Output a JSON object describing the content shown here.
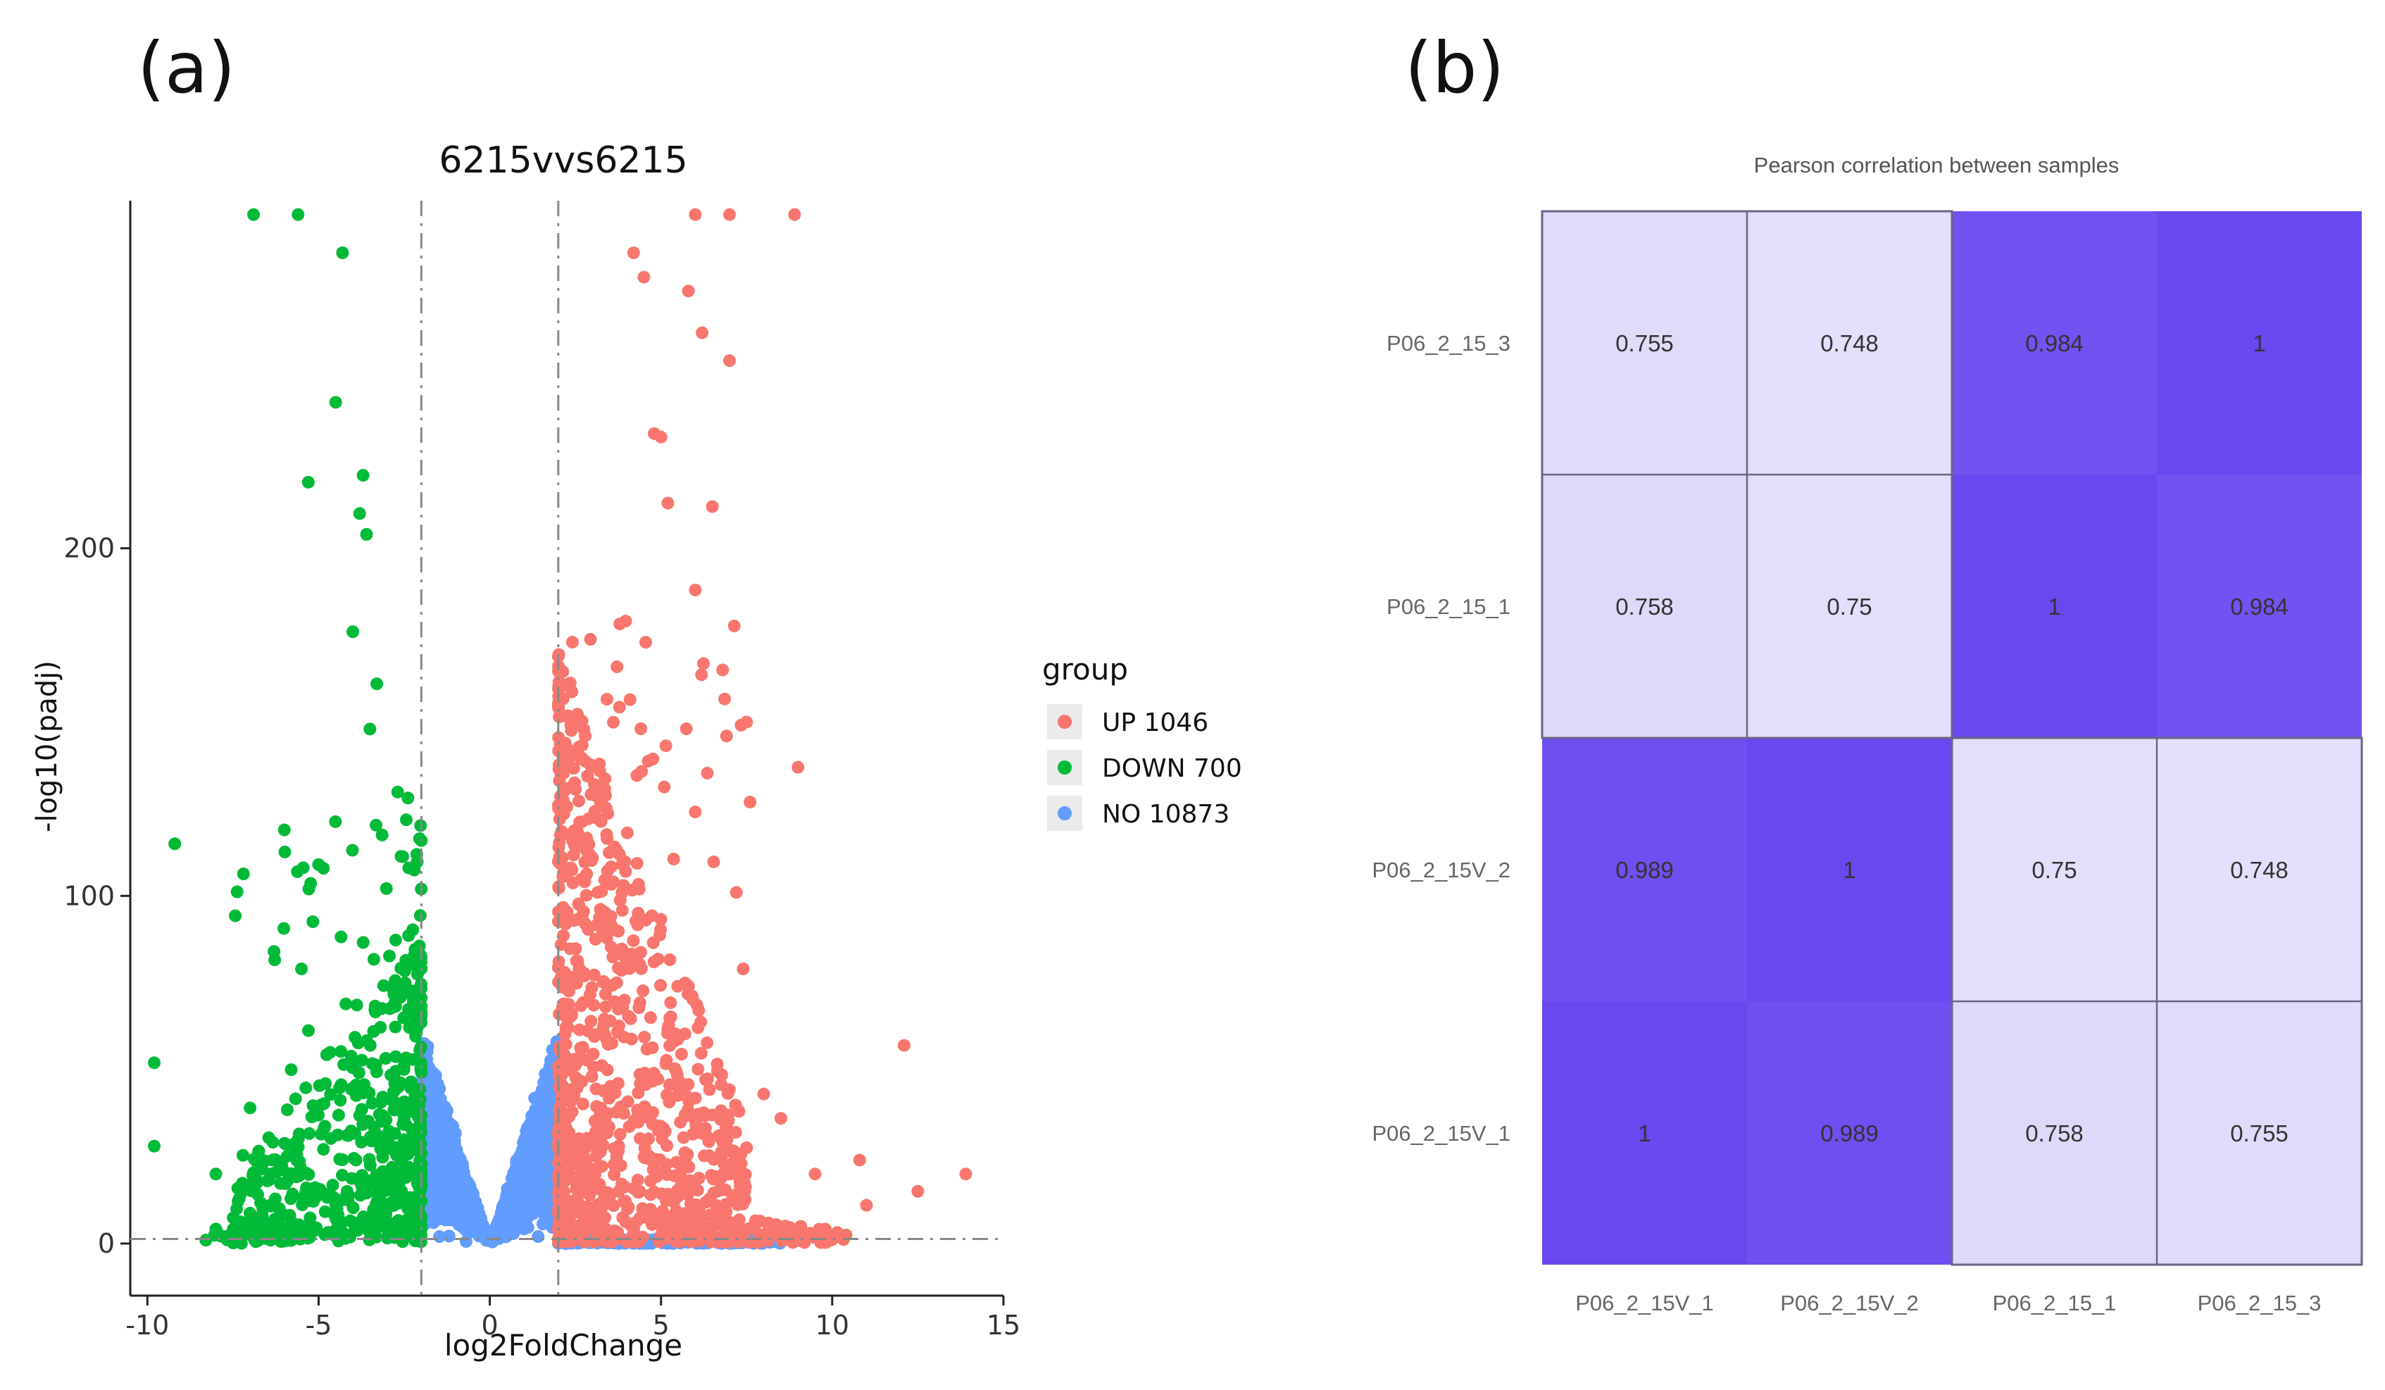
{
  "panels": {
    "a_label": "(a)",
    "b_label": "(b)"
  },
  "chart_data": [
    {
      "type": "scatter",
      "title": "6215vvs6215",
      "xlabel": "log2FoldChange",
      "ylabel": "-log10(padj)",
      "xlim": [
        -10.5,
        15
      ],
      "ylim": [
        -15,
        300
      ],
      "xticks": [
        -10,
        -5,
        0,
        5,
        10,
        15
      ],
      "yticks": [
        0,
        100,
        200
      ],
      "thresholds": {
        "x": [
          -2,
          2
        ],
        "y": 1.3
      },
      "legend": {
        "title": "group",
        "entries": [
          {
            "name": "UP 1046",
            "color": "#F8766D"
          },
          {
            "name": "DOWN 700",
            "color": "#00BA38"
          },
          {
            "name": "NO 10873",
            "color": "#619CFF"
          }
        ]
      },
      "counts": {
        "UP": 1046,
        "DOWN": 700,
        "NO": 10873
      },
      "notable_points": {
        "down": [
          [
            -9.8,
            52
          ],
          [
            -9.8,
            28
          ],
          [
            -9.2,
            115
          ],
          [
            -6.0,
            119
          ],
          [
            -5.5,
            79
          ],
          [
            -5.3,
            219
          ],
          [
            -5.0,
            109
          ],
          [
            -4.5,
            242
          ],
          [
            -4.3,
            285
          ],
          [
            -4.0,
            176
          ],
          [
            -3.8,
            210
          ],
          [
            -3.7,
            221
          ],
          [
            -3.6,
            204
          ],
          [
            -3.5,
            148
          ],
          [
            -3.3,
            161
          ],
          [
            -7.0,
            39
          ],
          [
            -6.5,
            18
          ],
          [
            -8.0,
            20
          ],
          [
            -4.8,
            46
          ],
          [
            -5.8,
            50
          ],
          [
            -6.9,
            296
          ],
          [
            -5.6,
            296
          ]
        ],
        "up": [
          [
            4.2,
            285
          ],
          [
            4.5,
            278
          ],
          [
            4.8,
            233
          ],
          [
            5.0,
            232
          ],
          [
            5.2,
            213
          ],
          [
            5.8,
            274
          ],
          [
            6.0,
            188
          ],
          [
            6.2,
            262
          ],
          [
            6.5,
            212
          ],
          [
            6.8,
            165
          ],
          [
            7.0,
            254
          ],
          [
            7.2,
            101
          ],
          [
            7.4,
            79
          ],
          [
            7.5,
            150
          ],
          [
            7.6,
            127
          ],
          [
            8.0,
            43
          ],
          [
            8.5,
            36
          ],
          [
            9.0,
            137
          ],
          [
            10.8,
            24
          ],
          [
            11.0,
            11
          ],
          [
            12.1,
            57
          ],
          [
            12.5,
            15
          ],
          [
            13.9,
            20
          ],
          [
            9.5,
            20
          ],
          [
            6.0,
            296
          ],
          [
            7.0,
            296
          ],
          [
            8.9,
            296
          ]
        ]
      }
    },
    {
      "type": "heatmap",
      "title": "Pearson correlation between samples",
      "x_labels": [
        "P06_2_15V_1",
        "P06_2_15V_2",
        "P06_2_15_1",
        "P06_2_15_3"
      ],
      "y_labels": [
        "P06_2_15_3",
        "P06_2_15_1",
        "P06_2_15V_2",
        "P06_2_15V_1"
      ],
      "values": [
        [
          "0.755",
          "0.748",
          "0.984",
          "1"
        ],
        [
          "0.758",
          "0.75",
          "1",
          "0.984"
        ],
        [
          "0.989",
          "1",
          "0.75",
          "0.748"
        ],
        [
          "1",
          "0.989",
          "0.758",
          "0.755"
        ]
      ],
      "color_low": "#E8E4FA",
      "color_high": "#6A48F0"
    }
  ]
}
